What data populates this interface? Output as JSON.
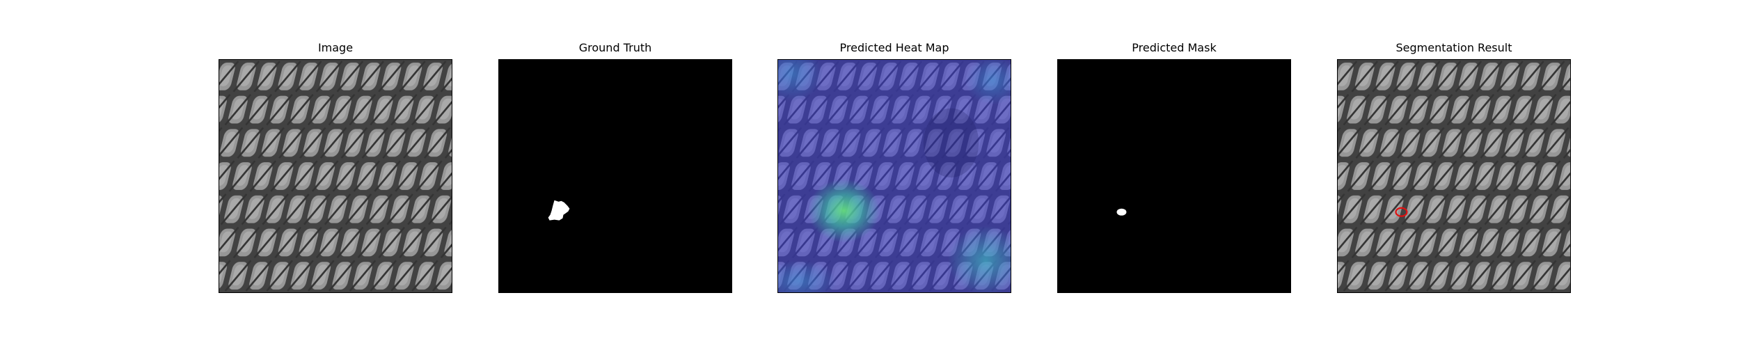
{
  "figure": {
    "panels": [
      {
        "title": "Image",
        "kind": "image"
      },
      {
        "title": "Ground Truth",
        "kind": "ground-truth"
      },
      {
        "title": "Predicted Heat Map",
        "kind": "heatmap"
      },
      {
        "title": "Predicted Mask",
        "kind": "predicted-mask"
      },
      {
        "title": "Segmentation Result",
        "kind": "segmentation-result"
      }
    ],
    "colors": {
      "mask_foreground": "#ffffff",
      "mask_background": "#000000",
      "segmentation_contour": "#e01010",
      "heatmap_base": "#3a3ad8",
      "heatmap_hot": "#3fe0a0"
    }
  }
}
